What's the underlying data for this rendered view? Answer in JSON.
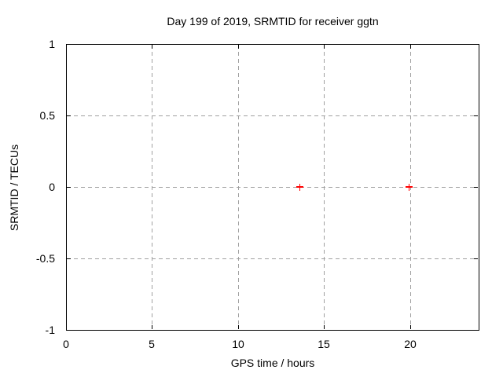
{
  "colors": {
    "background": "#ffffff",
    "text": "#000000",
    "plot_border": "#000000",
    "grid": "#a0a0a0",
    "marker": "#ff0000"
  },
  "chart_data": {
    "type": "scatter",
    "title": "Day 199 of 2019, SRMTID for receiver ggtn",
    "xlabel": "GPS time / hours",
    "ylabel": "SRMTID / TECUs",
    "xlim": [
      0,
      24
    ],
    "ylim": [
      -1,
      1
    ],
    "xticks": [
      0,
      5,
      10,
      15,
      20
    ],
    "yticks": [
      -1,
      -0.5,
      0,
      0.5,
      1
    ],
    "grid": "dashed, at major ticks",
    "legend": "none",
    "series": [
      {
        "name": "SRMTID",
        "marker": "plus",
        "color": "#ff0000",
        "points": [
          {
            "x": 13.6,
            "y": 0.0
          },
          {
            "x": 19.95,
            "y": 0.0
          }
        ]
      }
    ]
  }
}
